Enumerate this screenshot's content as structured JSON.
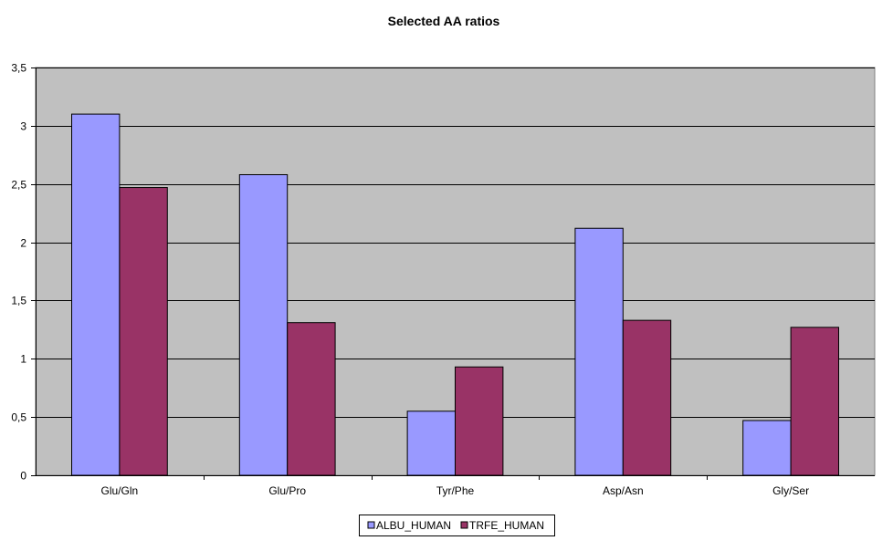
{
  "chart_data": {
    "type": "bar",
    "title": "Selected AA ratios",
    "xlabel": "",
    "ylabel": "",
    "categories": [
      "Glu/Gln",
      "Glu/Pro",
      "Tyr/Phe",
      "Asp/Asn",
      "Gly/Ser"
    ],
    "series": [
      {
        "name": "ALBU_HUMAN",
        "values": [
          3.1,
          2.58,
          0.55,
          2.12,
          0.47
        ],
        "color": "#9999FF"
      },
      {
        "name": "TRFE_HUMAN",
        "values": [
          2.47,
          1.31,
          0.93,
          1.33,
          1.27
        ],
        "color": "#993366"
      }
    ],
    "yticks": [
      "0",
      "0,5",
      "1",
      "1,5",
      "2",
      "2,5",
      "3",
      "3,5"
    ],
    "ylim": [
      0,
      3.5
    ],
    "grid": true,
    "legend_position": "bottom-center",
    "plot_background": "#C0C0C0"
  }
}
